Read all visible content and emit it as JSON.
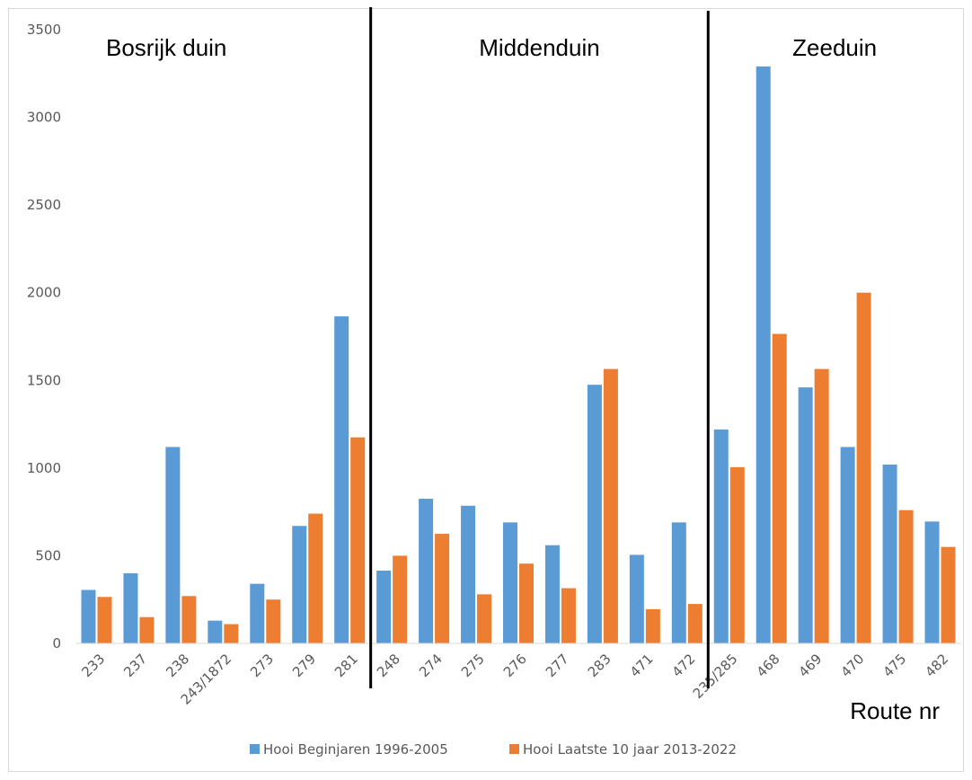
{
  "chart_data": {
    "type": "bar",
    "title": "",
    "xlabel": "Route nr",
    "ylabel": "",
    "ylim": [
      0,
      3500
    ],
    "yticks": [
      0,
      500,
      1000,
      1500,
      2000,
      2500,
      3000,
      3500
    ],
    "grid": false,
    "legend_position": "bottom",
    "categories": [
      "233",
      "237",
      "238",
      "243/1872",
      "273",
      "279",
      "281",
      "248",
      "274",
      "275",
      "276",
      "277",
      "283",
      "471",
      "472",
      "235/285",
      "468",
      "469",
      "470",
      "475",
      "482"
    ],
    "series": [
      {
        "name": "Hooi Beginjaren 1996-2005",
        "color": "#5b9bd5",
        "values": [
          305,
          400,
          1120,
          130,
          340,
          670,
          1865,
          415,
          825,
          785,
          690,
          560,
          1475,
          505,
          690,
          1220,
          3290,
          1460,
          1120,
          1020,
          695
        ]
      },
      {
        "name": "Hooi Laatste 10 jaar 2013-2022",
        "color": "#ed7d31",
        "values": [
          265,
          150,
          270,
          110,
          250,
          740,
          1175,
          500,
          625,
          280,
          455,
          315,
          1565,
          195,
          225,
          1005,
          1765,
          1565,
          2000,
          760,
          550
        ]
      }
    ],
    "annotations": [
      {
        "text": "Bosrijk duin",
        "after_category_index": null
      },
      {
        "text": "Middenduin",
        "after_category_index": 6
      },
      {
        "text": "Zeeduin",
        "after_category_index": 14
      }
    ]
  }
}
